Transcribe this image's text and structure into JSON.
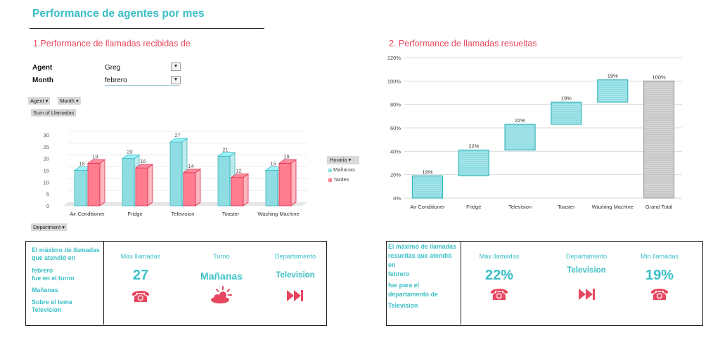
{
  "header": {
    "title": "Performance de agentes por mes"
  },
  "left": {
    "section_title": "1.Performance de llamadas recibidas de",
    "filters": [
      {
        "label": "Agent",
        "value": "Greg"
      },
      {
        "label": "Month",
        "value": "febrero"
      }
    ],
    "filter_icon": "filter-icon",
    "pivot_buttons": {
      "agent": "Agent",
      "month": "Month",
      "sum": "Sum of Llamadas",
      "department": "Department"
    },
    "legend": {
      "title": "Horario",
      "items": [
        "Mañanas",
        "Tardes"
      ]
    }
  },
  "right": {
    "section_title": "2. Performance de llamadas resueltas"
  },
  "colors": {
    "accent_teal": "#3bbfc6",
    "accent_red": "#e8465f",
    "bar_teal": "#8fdde2",
    "bar_red": "#ff7d8f",
    "total_gray": "#c8c8c8"
  },
  "chart_data": [
    {
      "type": "bar",
      "title": "1.Performance de llamadas recibidas de",
      "categories": [
        "Air Conditioner",
        "Fridge",
        "Television",
        "Toaster",
        "Washing Machine"
      ],
      "series": [
        {
          "name": "Mañanas",
          "values": [
            15,
            20,
            27,
            21,
            15
          ]
        },
        {
          "name": "Tardes",
          "values": [
            18,
            16,
            14,
            12,
            18
          ]
        }
      ],
      "ylim": [
        0,
        30
      ],
      "yticks": [
        "0",
        "5",
        "10",
        "15",
        "20",
        "25",
        "30"
      ],
      "legend_title": "Horario",
      "xlabel": "Department",
      "ylabel": ""
    },
    {
      "type": "waterfall",
      "title": "2. Performance de llamadas resueltas",
      "categories": [
        "Air Conditioner",
        "Fridge",
        "Television",
        "Toaster",
        "Washing Machine",
        "Grand Total"
      ],
      "values": [
        19,
        22,
        22,
        19,
        19,
        100
      ],
      "labels": [
        "19%",
        "22%",
        "22%",
        "19%",
        "19%",
        "100%"
      ],
      "ylim": [
        0,
        120
      ],
      "yticks": [
        "0%",
        "20%",
        "40%",
        "60%",
        "80%",
        "100%",
        "120%"
      ]
    }
  ],
  "kpi_left": {
    "description": [
      "El máximo de llamadas",
      "que atendió en",
      "febrero",
      "fue en el turno",
      "Mañanas",
      "Sobre el tema",
      "Television"
    ],
    "items": [
      {
        "label": "Máx llamadas",
        "value": "27",
        "icon": "phone-icon"
      },
      {
        "label": "Turno",
        "value": "Mañanas",
        "icon": "sun-cloud-icon"
      },
      {
        "label": "Departamento",
        "value": "Television",
        "icon": "skip-forward-icon"
      }
    ]
  },
  "kpi_right": {
    "description": [
      "El máximo de llamadas",
      "resueltas que atendió",
      "en",
      "febrero",
      "fue para el",
      "departamento de",
      "Television"
    ],
    "items": [
      {
        "label": "Máx llamadas",
        "value": "22%",
        "icon": "phone-icon"
      },
      {
        "label": "Departamento",
        "value": "Television",
        "icon": "skip-forward-icon"
      },
      {
        "label": "Min llamadas",
        "value": "19%",
        "icon": "phone-icon"
      }
    ]
  }
}
